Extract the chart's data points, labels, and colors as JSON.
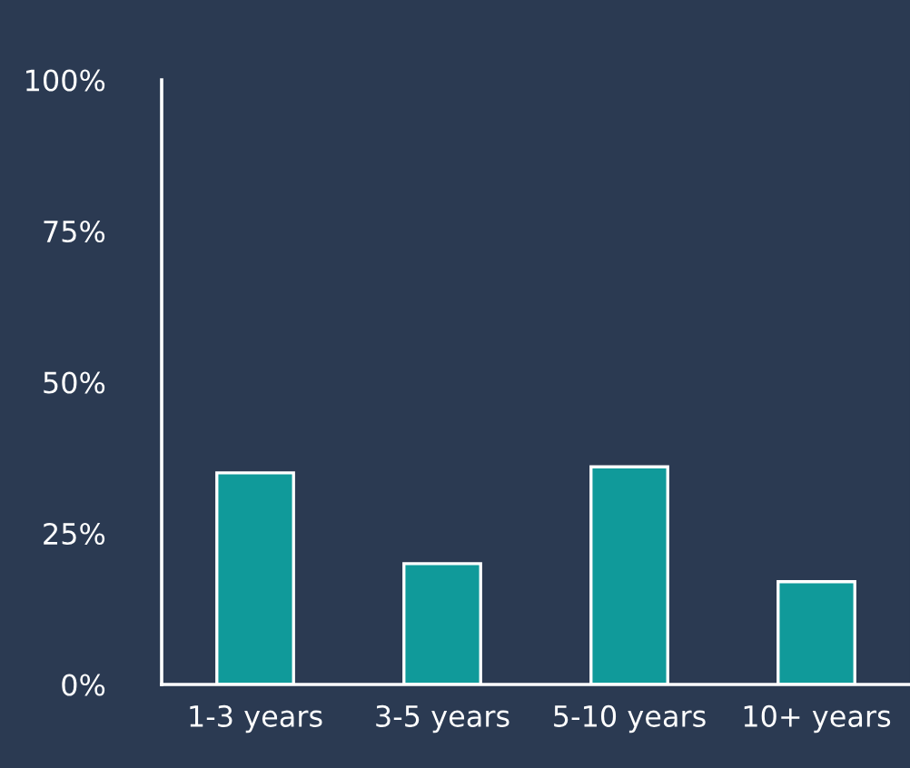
{
  "chart_data": {
    "type": "bar",
    "categories": [
      "1-3 years",
      "3-5 years",
      "5-10 years",
      "10+ years"
    ],
    "values": [
      35,
      20,
      36,
      17
    ],
    "color": "#109a9a",
    "ylim": [
      0,
      100
    ],
    "yticks": [
      {
        "value": 0,
        "label": "0%"
      },
      {
        "value": 25,
        "label": "25%"
      },
      {
        "value": 50,
        "label": "50%"
      },
      {
        "value": 75,
        "label": "75%"
      },
      {
        "value": 100,
        "label": "100%"
      }
    ],
    "grid": false
  }
}
